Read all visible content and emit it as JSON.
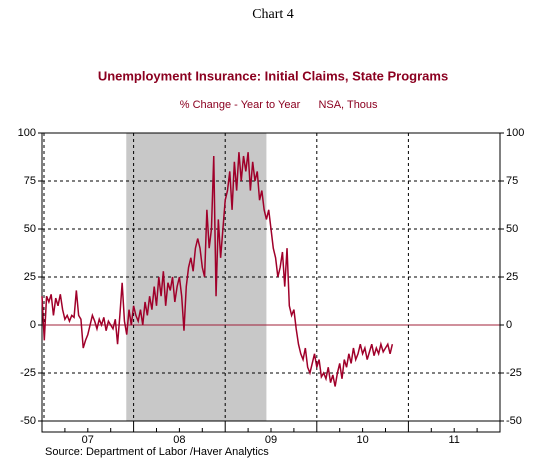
{
  "chart_data": {
    "type": "line",
    "header": "Chart 4",
    "title": "Unemployment Insurance: Initial Claims, State Programs",
    "subtitle": "% Change - Year to Year",
    "units": "NSA, Thous",
    "source": "Source:  Department of Labor /Haver Analytics",
    "xlim": [
      2007,
      2012
    ],
    "ylim": [
      -50,
      100
    ],
    "yticks": [
      -50,
      -25,
      0,
      25,
      50,
      75,
      100
    ],
    "xticks": [
      {
        "value": 2007.5,
        "label": "07"
      },
      {
        "value": 2008.5,
        "label": "08"
      },
      {
        "value": 2009.5,
        "label": "09"
      },
      {
        "value": 2010.5,
        "label": "10"
      },
      {
        "value": 2011.5,
        "label": "11"
      }
    ],
    "xgrid": [
      2007,
      2008,
      2009,
      2010,
      2011
    ],
    "grid": true,
    "shade": [
      2007.92,
      2009.45
    ],
    "shade_color": "#c8c8c8",
    "zero_line_color": "#a0203a",
    "x": [
      2007.0,
      2007.025,
      2007.05,
      2007.075,
      2007.1,
      2007.125,
      2007.15,
      2007.175,
      2007.2,
      2007.225,
      2007.25,
      2007.275,
      2007.3,
      2007.325,
      2007.35,
      2007.375,
      2007.4,
      2007.425,
      2007.45,
      2007.475,
      2007.5,
      2007.525,
      2007.55,
      2007.575,
      2007.6,
      2007.625,
      2007.65,
      2007.675,
      2007.7,
      2007.725,
      2007.75,
      2007.775,
      2007.8,
      2007.825,
      2007.85,
      2007.875,
      2007.9,
      2007.925,
      2007.95,
      2007.975,
      2008.0,
      2008.025,
      2008.05,
      2008.075,
      2008.1,
      2008.125,
      2008.15,
      2008.175,
      2008.2,
      2008.225,
      2008.25,
      2008.275,
      2008.3,
      2008.325,
      2008.35,
      2008.375,
      2008.4,
      2008.425,
      2008.45,
      2008.475,
      2008.5,
      2008.525,
      2008.55,
      2008.575,
      2008.6,
      2008.625,
      2008.65,
      2008.675,
      2008.7,
      2008.725,
      2008.75,
      2008.775,
      2008.8,
      2008.825,
      2008.85,
      2008.875,
      2008.9,
      2008.925,
      2008.95,
      2008.975,
      2009.0,
      2009.025,
      2009.05,
      2009.075,
      2009.1,
      2009.125,
      2009.15,
      2009.175,
      2009.2,
      2009.225,
      2009.25,
      2009.275,
      2009.3,
      2009.325,
      2009.35,
      2009.375,
      2009.4,
      2009.425,
      2009.45,
      2009.475,
      2009.5,
      2009.525,
      2009.55,
      2009.575,
      2009.6,
      2009.625,
      2009.65,
      2009.675,
      2009.7,
      2009.725,
      2009.75,
      2009.775,
      2009.8,
      2009.825,
      2009.85,
      2009.875,
      2009.9,
      2009.925,
      2009.95,
      2009.975,
      2010.0,
      2010.025,
      2010.05,
      2010.075,
      2010.1,
      2010.125,
      2010.15,
      2010.175,
      2010.2,
      2010.225,
      2010.25,
      2010.275,
      2010.3,
      2010.325,
      2010.35,
      2010.375,
      2010.4,
      2010.425,
      2010.45,
      2010.475,
      2010.5,
      2010.525,
      2010.55,
      2010.575,
      2010.6,
      2010.625,
      2010.65,
      2010.675,
      2010.7,
      2010.725,
      2010.75,
      2010.775,
      2010.8,
      2010.825
    ],
    "series": [
      {
        "color": "#a0002a",
        "values": [
          15,
          -8,
          15,
          12,
          16,
          5,
          14,
          10,
          16,
          8,
          3,
          5,
          2,
          5,
          4,
          18,
          5,
          3,
          -12,
          -8,
          -5,
          0,
          5,
          2,
          -2,
          3,
          0,
          4,
          -3,
          2,
          0,
          -2,
          3,
          -10,
          5,
          22,
          2,
          -5,
          8,
          0,
          10,
          5,
          2,
          8,
          0,
          12,
          5,
          15,
          8,
          20,
          10,
          25,
          15,
          28,
          10,
          22,
          18,
          25,
          12,
          20,
          25,
          15,
          -3,
          20,
          30,
          35,
          28,
          40,
          45,
          40,
          30,
          25,
          60,
          40,
          50,
          88,
          15,
          55,
          35,
          50,
          65,
          70,
          80,
          60,
          85,
          70,
          90,
          75,
          88,
          80,
          90,
          70,
          85,
          75,
          80,
          65,
          70,
          60,
          55,
          60,
          50,
          40,
          35,
          25,
          30,
          38,
          20,
          40,
          10,
          5,
          8,
          -2,
          -10,
          -15,
          -18,
          -12,
          -22,
          -25,
          -20,
          -15,
          -22,
          -18,
          -27,
          -25,
          -28,
          -22,
          -30,
          -26,
          -32,
          -25,
          -20,
          -28,
          -18,
          -22,
          -15,
          -20,
          -12,
          -18,
          -15,
          -10,
          -15,
          -12,
          -18,
          -14,
          -10,
          -16,
          -12,
          -15,
          -10,
          -14,
          -12,
          -10,
          -15,
          -10
        ]
      }
    ]
  }
}
